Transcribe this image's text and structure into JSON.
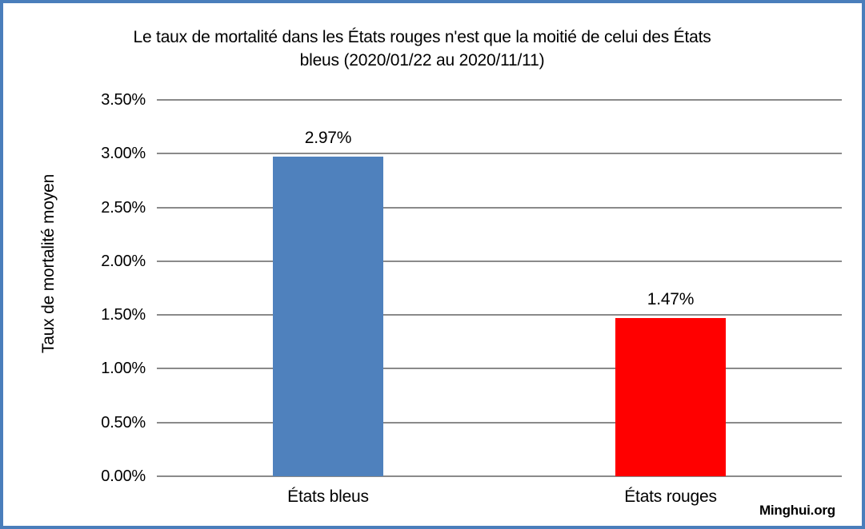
{
  "window": {
    "frame_border_color": "#4a7ebb",
    "background_color": "#ffffff"
  },
  "chart_data": {
    "type": "bar",
    "title": "Le taux de mortalité dans les États rouges n'est que la moitié de celui des États bleus (2020/01/22 au 2020/11/11)",
    "title_lines": [
      "Le taux de mortalité dans les États rouges n'est que la moitié de celui des États",
      "bleus (2020/01/22 au 2020/11/11)"
    ],
    "xlabel": "",
    "ylabel": "Taux de mortalité moyen",
    "categories": [
      "États bleus",
      "États rouges"
    ],
    "values": [
      2.97,
      1.47
    ],
    "value_labels": [
      "2.97%",
      "1.47%"
    ],
    "bar_colors": [
      "#4f81bd",
      "#ff0000"
    ],
    "ylim": [
      0,
      3.5
    ],
    "ytick_step": 0.5,
    "ytick_labels": [
      "0.00%",
      "0.50%",
      "1.00%",
      "1.50%",
      "2.00%",
      "2.50%",
      "3.00%",
      "3.50%"
    ],
    "grid": true,
    "gridline_color": "#8a8a8a",
    "legend": "none",
    "watermark": "Minghui.org"
  }
}
